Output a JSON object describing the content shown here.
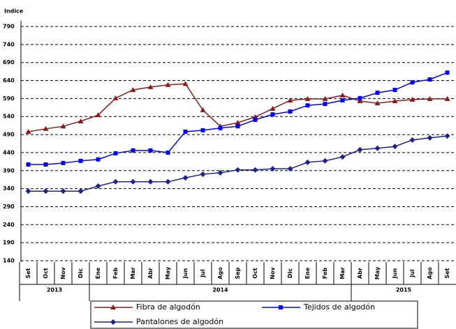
{
  "chart_data": {
    "type": "line",
    "ylabel": "Indice",
    "ylim": [
      140,
      790
    ],
    "yticks": [
      140,
      190,
      240,
      290,
      340,
      390,
      440,
      490,
      540,
      590,
      640,
      690,
      740,
      790
    ],
    "grid": true,
    "groups": [
      {
        "name": "2013",
        "categories": [
          "Set",
          "Oct",
          "Nov",
          "Dic"
        ]
      },
      {
        "name": "2014",
        "categories": [
          "Ene",
          "Feb",
          "Mar",
          "Abr",
          "May",
          "Jun",
          "Jul",
          "Ago",
          "Sep",
          "Oct",
          "Nov",
          "Dic",
          "Ene",
          "Feb",
          "Mar"
        ]
      },
      {
        "name": "2015",
        "categories": [
          "Abr",
          "May",
          "Jun",
          "Jul",
          "Ago",
          "Set"
        ]
      }
    ],
    "series": [
      {
        "name": "Fibra de algodón",
        "color": "#8b1a1a",
        "marker": "triangle",
        "values": [
          498,
          506,
          513,
          527,
          544,
          591,
          614,
          622,
          628,
          631,
          558,
          513,
          523,
          539,
          562,
          585,
          589,
          589,
          599,
          583,
          577,
          583,
          587,
          589,
          589
        ]
      },
      {
        "name": "Tejidos de algodón",
        "color": "#0000ff",
        "marker": "square",
        "values": [
          407,
          407,
          411,
          417,
          421,
          438,
          446,
          446,
          440,
          498,
          502,
          508,
          513,
          531,
          546,
          554,
          571,
          575,
          585,
          591,
          606,
          614,
          635,
          643,
          662
        ]
      },
      {
        "name": "Pantalones de algodón",
        "color": "#1f1f8f",
        "marker": "diamond",
        "values": [
          333,
          333,
          333,
          333,
          347,
          359,
          359,
          359,
          359,
          370,
          380,
          384,
          392,
          392,
          395,
          395,
          413,
          417,
          428,
          448,
          452,
          457,
          475,
          481,
          486
        ]
      }
    ]
  }
}
